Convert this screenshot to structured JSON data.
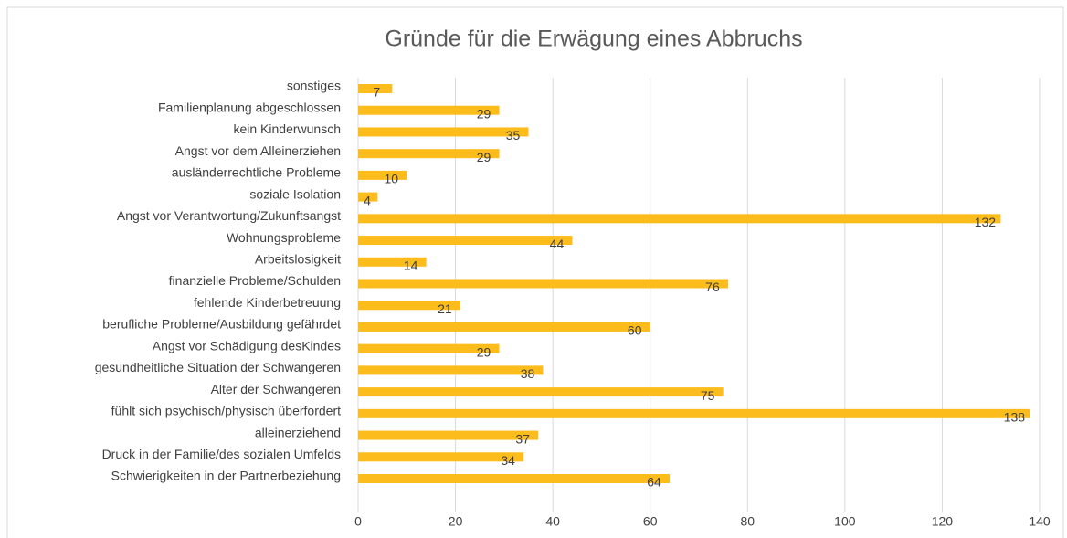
{
  "chart_data": {
    "type": "bar",
    "orientation": "horizontal",
    "title": "Gründe für die Erwägung eines Abbruchs",
    "categories": [
      "sonstiges",
      "Familienplanung abgeschlossen",
      "kein Kinderwunsch",
      "Angst vor dem Alleinerziehen",
      "ausländerrechtliche Probleme",
      "soziale Isolation",
      "Angst vor Verantwortung/Zukunftsangst",
      "Wohnungsprobleme",
      "Arbeitslosigkeit",
      "finanzielle Probleme/Schulden",
      "fehlende Kinderbetreuung",
      "berufliche Probleme/Ausbildung gefährdet",
      "Angst vor Schädigung desKindes",
      "gesundheitliche Situation der Schwangeren",
      "Alter der Schwangeren",
      "fühlt sich psychisch/physisch überfordert",
      "alleinerziehend",
      "Druck in der Familie/des sozialen Umfelds",
      "Schwierigkeiten in der Partnerbeziehung"
    ],
    "values": [
      7,
      29,
      35,
      29,
      10,
      4,
      132,
      44,
      14,
      76,
      21,
      60,
      29,
      38,
      75,
      138,
      37,
      34,
      64
    ],
    "color": "#fbbc1c",
    "xlim": [
      0,
      140
    ],
    "xticks": [
      0,
      20,
      40,
      60,
      80,
      100,
      120,
      140
    ],
    "grid": true
  }
}
